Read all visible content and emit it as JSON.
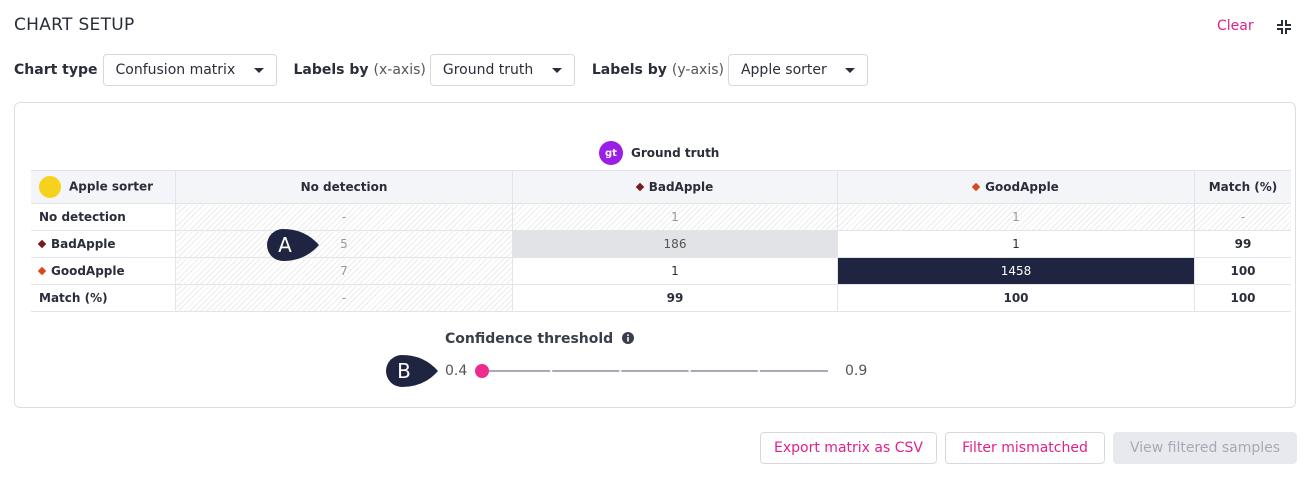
{
  "header": {
    "title": "CHART SETUP",
    "clear": "Clear"
  },
  "controls": {
    "chart_type": {
      "label": "Chart type",
      "value": "Confusion matrix"
    },
    "x_labels": {
      "label": "Labels by",
      "axis": "(x-axis)",
      "value": "Ground truth"
    },
    "y_labels": {
      "label": "Labels by",
      "axis": "(y-axis)",
      "value": "Apple sorter"
    }
  },
  "matrix": {
    "x_badge": "gt",
    "x_title": "Ground truth",
    "y_title": "Apple sorter",
    "columns": [
      "No detection",
      "BadApple",
      "GoodApple",
      "Match (%)"
    ],
    "rows": [
      {
        "label": "No detection",
        "cells": [
          "-",
          1,
          1,
          "-"
        ]
      },
      {
        "label": "BadApple",
        "cells": [
          5,
          186,
          1,
          99
        ]
      },
      {
        "label": "GoodApple",
        "cells": [
          7,
          1,
          1458,
          100
        ]
      },
      {
        "label": "Match (%)",
        "cells": [
          "-",
          99,
          100,
          100
        ]
      }
    ]
  },
  "slider": {
    "label": "Confidence threshold",
    "min": 0.4,
    "max": 0.9,
    "value": 0.4,
    "step": 0.1
  },
  "annotations": [
    "A",
    "B"
  ],
  "buttons": [
    "Export matrix as CSV",
    "Filter mismatched",
    "View filtered samples"
  ]
}
